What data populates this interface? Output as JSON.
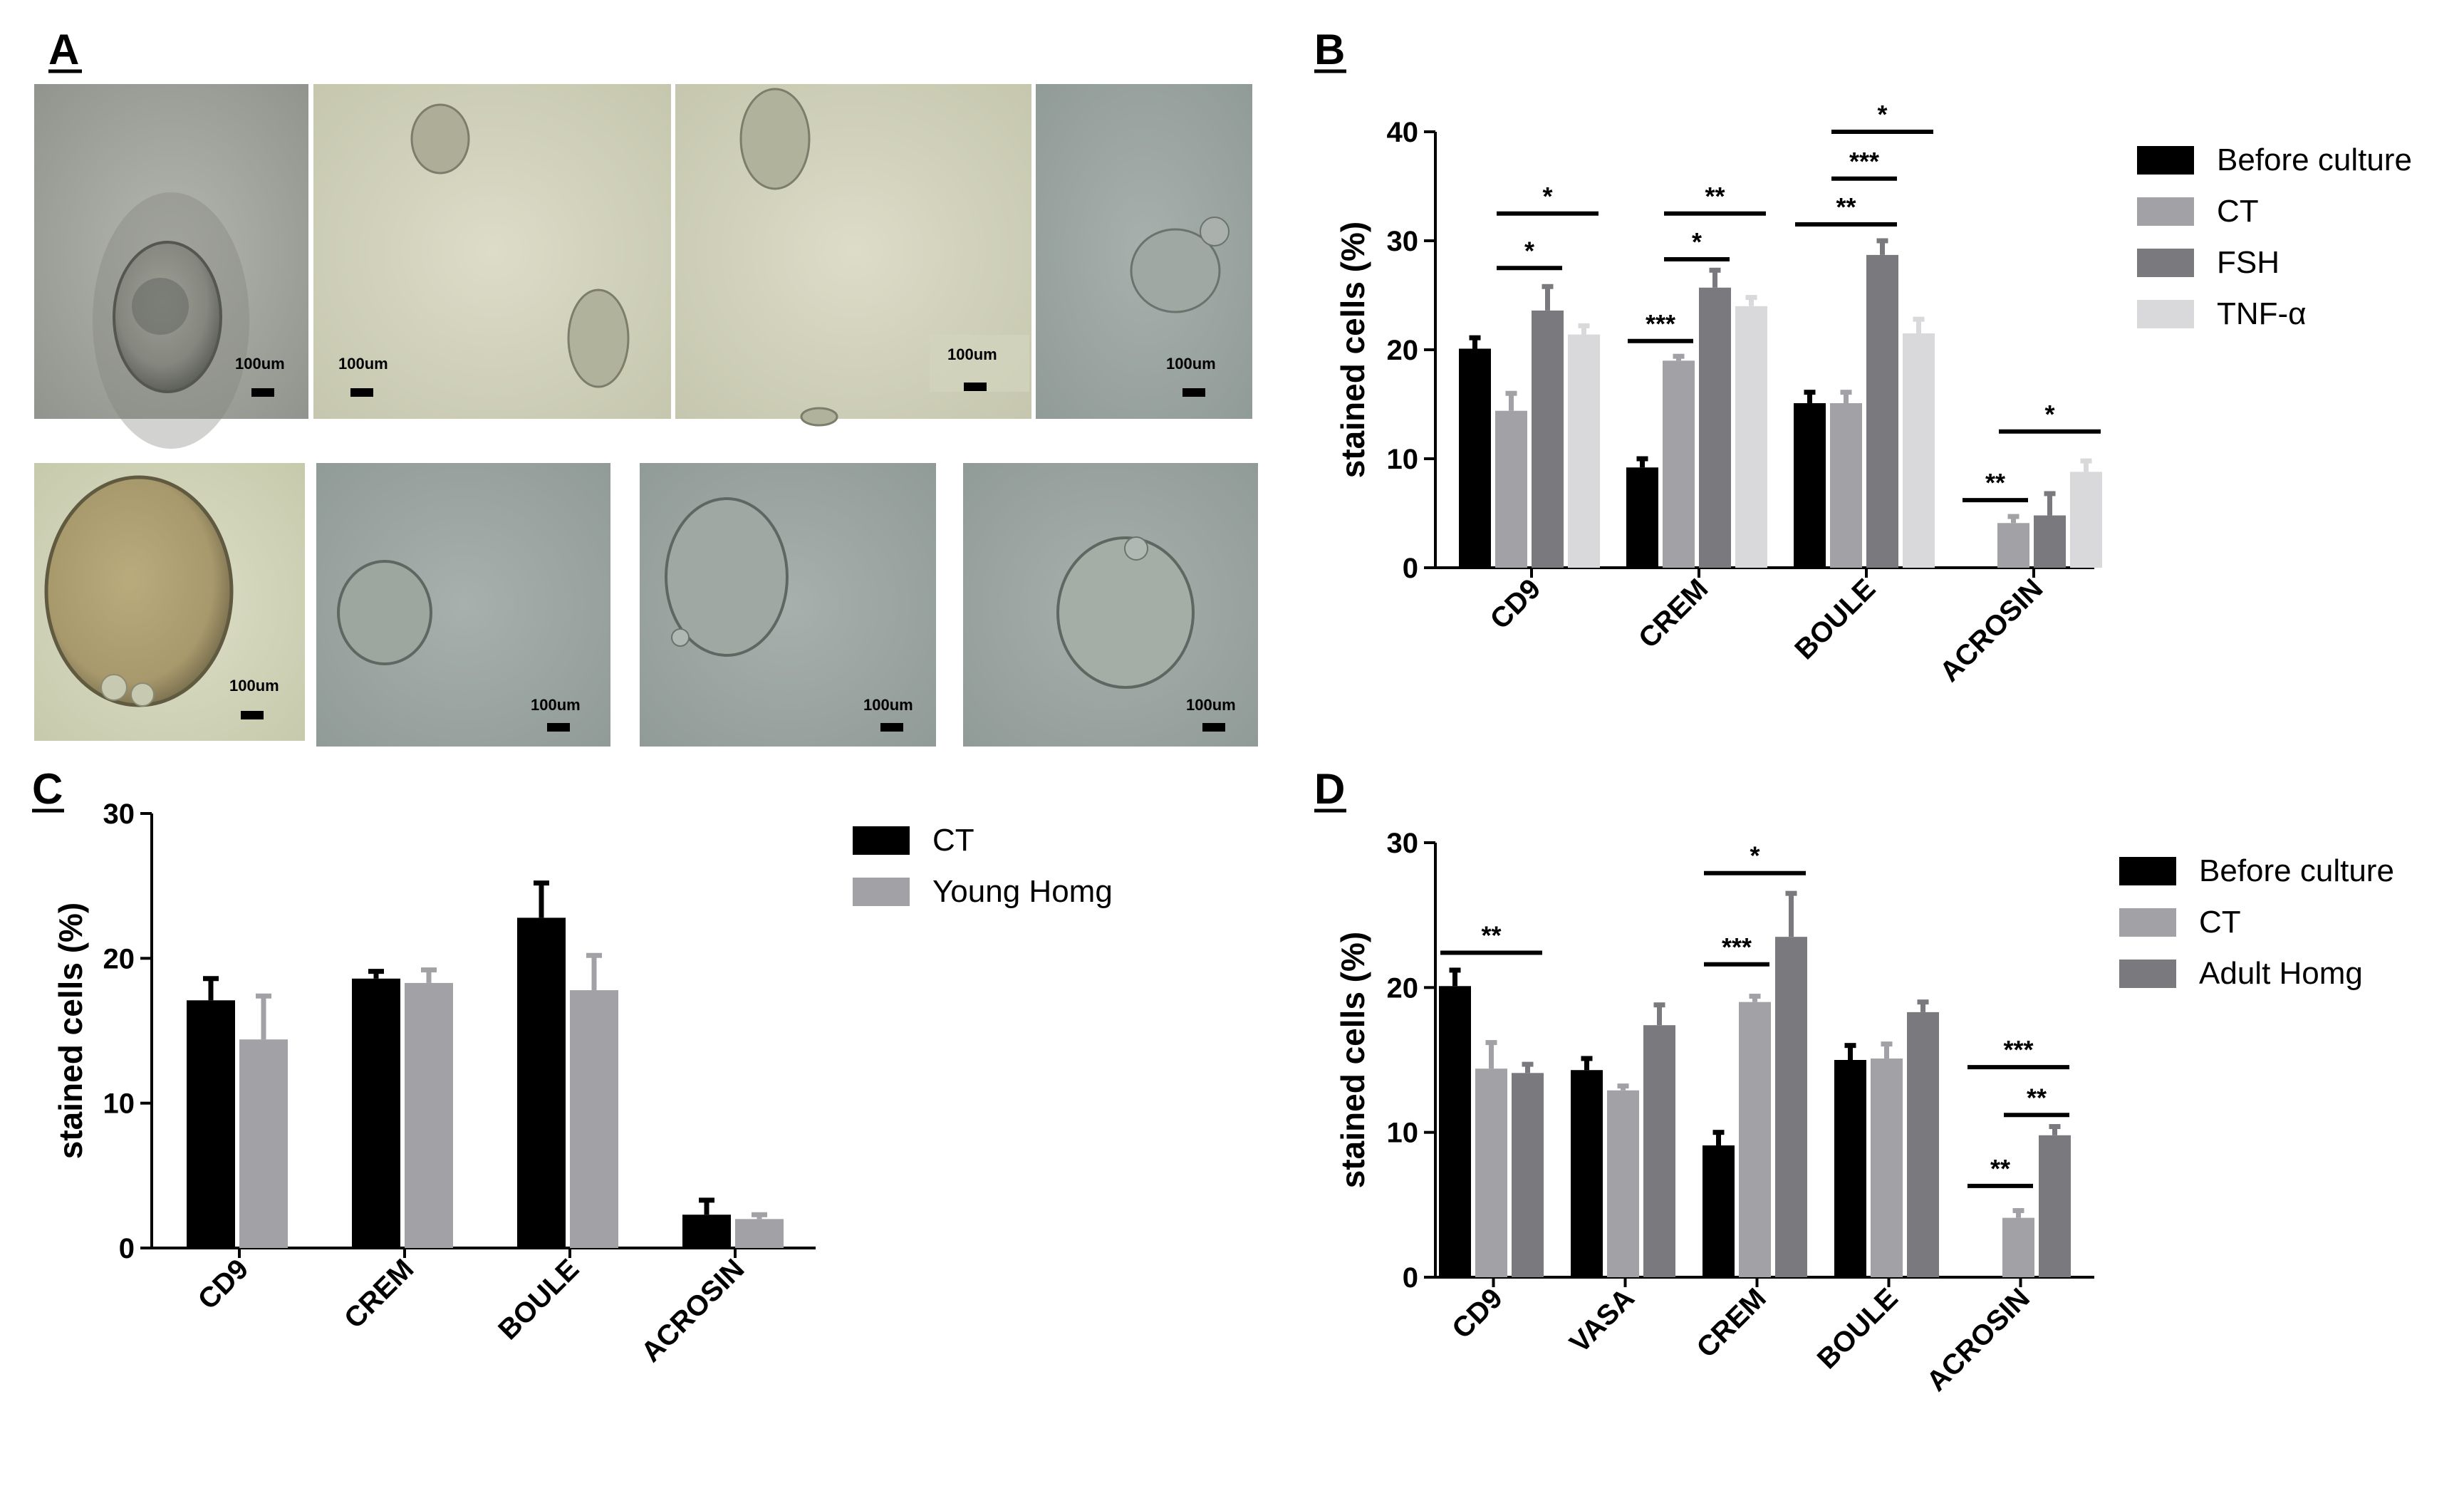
{
  "panels": {
    "A": {
      "letter": "A",
      "scale_label": "100um"
    },
    "B": {
      "letter": "B"
    },
    "C": {
      "letter": "C"
    },
    "D": {
      "letter": "D"
    }
  },
  "colors": {
    "before": "#000000",
    "ct": "#a2a2a6",
    "fsh": "#7a7a7e",
    "tnf": "#d9d9db",
    "young": "#a2a2a6",
    "adult": "#7a7a7e"
  },
  "chart_data": [
    {
      "panel": "B",
      "type": "bar",
      "ylabel": "stained cells (%)",
      "ylim": [
        0,
        40
      ],
      "yticks": [
        0,
        10,
        20,
        30,
        40
      ],
      "categories": [
        "CD9",
        "CREM",
        "BOULE",
        "ACROSIN"
      ],
      "legend_position": "right",
      "series": [
        {
          "name": "Before culture",
          "color_key": "before",
          "values": [
            20.1,
            9.2,
            15.1,
            null
          ],
          "errors": [
            1.0,
            0.8,
            1.0,
            null
          ]
        },
        {
          "name": "CT",
          "color_key": "ct",
          "values": [
            14.4,
            19.0,
            15.1,
            4.1
          ],
          "errors": [
            1.6,
            0.4,
            1.0,
            0.6
          ]
        },
        {
          "name": "FSH",
          "color_key": "fsh",
          "values": [
            23.6,
            25.7,
            28.7,
            4.8
          ],
          "errors": [
            2.2,
            1.6,
            1.3,
            2.0
          ]
        },
        {
          "name": "TNF-α",
          "color_key": "tnf",
          "values": [
            21.4,
            24.0,
            21.5,
            8.8
          ],
          "errors": [
            0.8,
            0.8,
            1.3,
            1.0
          ]
        }
      ],
      "significance": [
        {
          "category": "CD9",
          "from": 1,
          "to": 2,
          "y": 27.5,
          "label": "*"
        },
        {
          "category": "CD9",
          "from": 1,
          "to": 3,
          "y": 32.5,
          "label": "*"
        },
        {
          "category": "CREM",
          "from": 0,
          "to": 1,
          "y": 20.8,
          "label": "***"
        },
        {
          "category": "CREM",
          "from": 1,
          "to": 2,
          "y": 28.3,
          "label": "*"
        },
        {
          "category": "CREM",
          "from": 1,
          "to": 3,
          "y": 32.5,
          "label": "**"
        },
        {
          "category": "BOULE",
          "from": 0,
          "to": 2,
          "y": 31.5,
          "label": "**"
        },
        {
          "category": "BOULE",
          "from": 1,
          "to": 2,
          "y": 35.7,
          "label": "***"
        },
        {
          "category": "BOULE",
          "from": 1,
          "to": 3,
          "y": 40.0,
          "label": "*"
        },
        {
          "category": "ACROSIN",
          "from": 0,
          "to": 1,
          "y": 6.2,
          "label": "**"
        },
        {
          "category": "ACROSIN",
          "from": 1,
          "to": 3,
          "y": 12.5,
          "label": "*"
        }
      ]
    },
    {
      "panel": "C",
      "type": "bar",
      "ylabel": "stained cells (%)",
      "ylim": [
        0,
        30
      ],
      "yticks": [
        0,
        10,
        20,
        30
      ],
      "categories": [
        "CD9",
        "CREM",
        "BOULE",
        "ACROSIN"
      ],
      "legend_position": "right",
      "series": [
        {
          "name": "CT",
          "color_key": "before",
          "values": [
            17.1,
            18.6,
            22.8,
            2.3
          ],
          "errors": [
            1.5,
            0.5,
            2.4,
            1.0
          ]
        },
        {
          "name": "Young Homg",
          "color_key": "young",
          "values": [
            14.4,
            18.3,
            17.8,
            2.0
          ],
          "errors": [
            3.0,
            0.9,
            2.4,
            0.3
          ]
        }
      ],
      "significance": []
    },
    {
      "panel": "D",
      "type": "bar",
      "ylabel": "stained cells (%)",
      "ylim": [
        0,
        30
      ],
      "yticks": [
        0,
        10,
        20,
        30
      ],
      "categories": [
        "CD9",
        "VASA",
        "CREM",
        "BOULE",
        "ACROSIN"
      ],
      "legend_position": "right",
      "series": [
        {
          "name": "Before culture",
          "color_key": "before",
          "values": [
            20.1,
            14.3,
            9.1,
            15.0,
            null
          ],
          "errors": [
            1.1,
            0.8,
            0.9,
            1.0,
            null
          ]
        },
        {
          "name": "CT",
          "color_key": "ct",
          "values": [
            14.4,
            12.9,
            19.0,
            15.1,
            4.1
          ],
          "errors": [
            1.8,
            0.3,
            0.4,
            1.0,
            0.5
          ]
        },
        {
          "name": "Adult Homg",
          "color_key": "adult",
          "values": [
            14.1,
            17.4,
            23.5,
            18.3,
            9.8
          ],
          "errors": [
            0.6,
            1.4,
            3.0,
            0.7,
            0.6
          ]
        }
      ],
      "significance": [
        {
          "category": "CD9",
          "from": 0,
          "to": 2,
          "y": 22.4,
          "label": "**"
        },
        {
          "category": "CREM",
          "from": 0,
          "to": 1,
          "y": 21.6,
          "label": "***"
        },
        {
          "category": "CREM",
          "from": 0,
          "to": 2,
          "y": 27.9,
          "label": "*"
        },
        {
          "category": "ACROSIN",
          "from": 0,
          "to": 1,
          "y": 6.3,
          "label": "**"
        },
        {
          "category": "ACROSIN",
          "from": 1,
          "to": 2,
          "y": 11.2,
          "label": "**"
        },
        {
          "category": "ACROSIN",
          "from": 0,
          "to": 2,
          "y": 14.5,
          "label": "***"
        }
      ]
    }
  ]
}
